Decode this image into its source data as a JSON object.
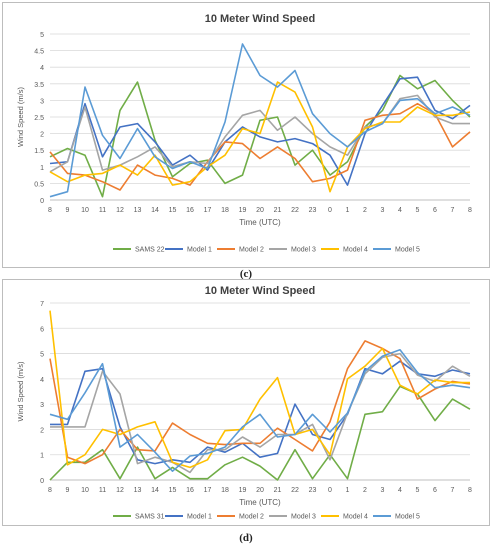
{
  "chart_data": [
    {
      "type": "line",
      "title": "10 Meter Wind Speed",
      "xlabel": "Time (UTC)",
      "ylabel": "Wind Speed (m/s)",
      "ylim": [
        0,
        5
      ],
      "yticks": [
        "0",
        "0.5",
        "1",
        "1.5",
        "2",
        "2.5",
        "3",
        "3.5",
        "4",
        "4.5",
        "5"
      ],
      "categories": [
        "8",
        "9",
        "10",
        "11",
        "12",
        "13",
        "14",
        "15",
        "16",
        "17",
        "18",
        "19",
        "20",
        "21",
        "22",
        "23",
        "0",
        "1",
        "2",
        "3",
        "4",
        "5",
        "6",
        "7",
        "8"
      ],
      "grid": true,
      "legend_position": "bottom",
      "series": [
        {
          "name": "SAMS 22",
          "color": "#70ad47",
          "values": [
            1.3,
            1.55,
            1.35,
            0.1,
            2.7,
            3.55,
            1.8,
            0.7,
            1.1,
            1.2,
            0.5,
            0.75,
            2.4,
            2.5,
            1.05,
            1.5,
            0.75,
            1.15,
            2.2,
            2.7,
            3.75,
            3.35,
            3.6,
            3.0,
            2.5
          ]
        },
        {
          "name": "Model 1",
          "color": "#4472c4",
          "values": [
            1.1,
            1.15,
            2.9,
            1.3,
            2.2,
            2.3,
            1.75,
            1.05,
            1.35,
            0.9,
            1.75,
            2.2,
            1.9,
            1.75,
            1.85,
            1.7,
            1.35,
            0.45,
            2.0,
            2.85,
            3.65,
            3.7,
            2.7,
            2.45,
            2.85
          ]
        },
        {
          "name": "Model 2",
          "color": "#ed7d31",
          "values": [
            1.45,
            0.8,
            0.75,
            0.55,
            0.3,
            1.05,
            0.75,
            0.65,
            0.45,
            1.15,
            1.75,
            1.7,
            1.25,
            1.6,
            1.25,
            0.55,
            0.65,
            0.9,
            2.4,
            2.55,
            2.6,
            2.9,
            2.6,
            1.6,
            2.05
          ]
        },
        {
          "name": "Model 3",
          "color": "#a5a5a5",
          "values": [
            0.85,
            1.15,
            2.8,
            0.9,
            1.05,
            1.3,
            1.6,
            1.0,
            1.15,
            1.1,
            1.9,
            2.55,
            2.7,
            2.1,
            2.5,
            2.0,
            1.6,
            1.35,
            2.2,
            2.3,
            3.05,
            3.15,
            2.5,
            2.3,
            2.3
          ]
        },
        {
          "name": "Model 4",
          "color": "#ffc000",
          "values": [
            0.85,
            0.55,
            0.75,
            0.8,
            1.05,
            0.75,
            1.35,
            0.45,
            0.55,
            1.0,
            1.35,
            2.15,
            2.0,
            3.55,
            3.25,
            2.2,
            0.25,
            1.6,
            2.15,
            2.35,
            2.35,
            2.8,
            2.55,
            2.55,
            2.65
          ]
        },
        {
          "name": "Model 5",
          "color": "#5b9bd5",
          "values": [
            0.1,
            0.25,
            3.4,
            1.95,
            1.25,
            2.15,
            1.3,
            0.95,
            1.15,
            0.95,
            2.35,
            4.7,
            3.75,
            3.4,
            3.9,
            2.6,
            2.0,
            1.6,
            2.05,
            2.3,
            3.0,
            3.05,
            2.6,
            2.8,
            2.55
          ]
        }
      ]
    },
    {
      "type": "line",
      "title": "10 Meter Wind Speed",
      "xlabel": "Time (UTC)",
      "ylabel": "Wind Speed (m/s)",
      "ylim": [
        0,
        7
      ],
      "yticks": [
        "0",
        "1",
        "2",
        "3",
        "4",
        "5",
        "6",
        "7"
      ],
      "categories": [
        "8",
        "9",
        "10",
        "11",
        "12",
        "13",
        "14",
        "15",
        "16",
        "17",
        "18",
        "19",
        "20",
        "21",
        "22",
        "23",
        "0",
        "1",
        "2",
        "3",
        "4",
        "5",
        "6",
        "7",
        "8"
      ],
      "grid": true,
      "legend_position": "bottom",
      "series": [
        {
          "name": "SAMS 31",
          "color": "#70ad47",
          "values": [
            0.0,
            0.7,
            0.7,
            1.2,
            0.05,
            1.3,
            0.05,
            0.5,
            0.05,
            0.05,
            0.6,
            0.9,
            0.55,
            0.0,
            1.2,
            0.05,
            1.0,
            0.05,
            2.6,
            2.7,
            3.7,
            3.4,
            2.35,
            3.2,
            2.8
          ]
        },
        {
          "name": "Model 1",
          "color": "#4472c4",
          "values": [
            2.2,
            2.2,
            4.3,
            4.4,
            2.1,
            0.8,
            0.65,
            0.8,
            0.7,
            1.3,
            1.1,
            1.45,
            0.9,
            1.05,
            3.0,
            1.8,
            1.6,
            2.6,
            4.4,
            4.2,
            4.7,
            4.2,
            4.1,
            4.35,
            4.2
          ]
        },
        {
          "name": "Model 2",
          "color": "#ed7d31",
          "values": [
            4.8,
            0.9,
            0.65,
            1.0,
            2.0,
            1.2,
            1.15,
            2.25,
            1.8,
            1.45,
            1.4,
            1.45,
            1.45,
            2.05,
            1.6,
            1.15,
            2.3,
            4.4,
            5.5,
            5.2,
            4.8,
            3.2,
            3.6,
            3.9,
            3.8
          ]
        },
        {
          "name": "Model 3",
          "color": "#a5a5a5",
          "values": [
            2.1,
            2.1,
            2.1,
            4.3,
            3.4,
            0.65,
            0.9,
            0.7,
            0.3,
            1.2,
            1.2,
            1.7,
            1.3,
            1.8,
            1.8,
            2.2,
            0.8,
            2.65,
            4.2,
            4.85,
            5.0,
            4.15,
            3.9,
            4.5,
            4.1
          ]
        },
        {
          "name": "Model 4",
          "color": "#ffc000",
          "values": [
            6.7,
            0.6,
            1.0,
            2.0,
            1.8,
            2.1,
            2.3,
            0.7,
            0.5,
            0.8,
            1.95,
            2.0,
            3.2,
            4.05,
            1.8,
            2.0,
            1.0,
            4.0,
            4.5,
            5.2,
            3.75,
            3.4,
            3.95,
            3.85,
            3.85
          ]
        },
        {
          "name": "Model 5",
          "color": "#5b9bd5",
          "values": [
            2.6,
            2.4,
            3.45,
            4.6,
            1.3,
            1.8,
            1.1,
            0.35,
            0.95,
            1.05,
            1.3,
            2.1,
            2.6,
            1.7,
            1.8,
            2.6,
            1.9,
            2.65,
            4.3,
            4.9,
            5.15,
            4.25,
            3.65,
            3.75,
            3.65
          ]
        }
      ]
    }
  ],
  "captions": [
    "(c)",
    "(d)"
  ]
}
